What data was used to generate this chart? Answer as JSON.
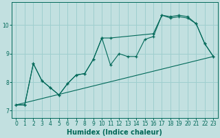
{
  "xlabel": "Humidex (Indice chaleur)",
  "bg_color": "#c2e0e0",
  "grid_color": "#9ecece",
  "line_color": "#006858",
  "xlim": [
    -0.5,
    23.5
  ],
  "ylim": [
    6.75,
    10.8
  ],
  "xticks": [
    0,
    1,
    2,
    3,
    4,
    5,
    6,
    7,
    8,
    9,
    10,
    11,
    12,
    13,
    14,
    15,
    16,
    17,
    18,
    19,
    20,
    21,
    22,
    23
  ],
  "yticks": [
    7,
    8,
    9,
    10
  ],
  "trend_x": [
    0,
    23
  ],
  "trend_y": [
    7.2,
    8.9
  ],
  "line1_x": [
    0,
    1,
    2,
    3,
    4,
    5,
    6,
    7,
    8,
    9,
    10,
    11,
    12,
    13,
    14,
    15,
    16,
    17,
    18,
    19,
    20,
    21,
    22,
    23
  ],
  "line1_y": [
    7.2,
    7.2,
    8.65,
    8.05,
    7.8,
    7.55,
    7.95,
    8.25,
    8.3,
    8.8,
    9.55,
    8.6,
    9.0,
    8.9,
    8.9,
    9.5,
    9.6,
    10.35,
    10.25,
    10.3,
    10.25,
    10.05,
    9.35,
    8.9
  ],
  "line2_x": [
    0,
    1,
    2,
    3,
    4,
    5,
    6,
    7,
    8,
    9,
    10,
    11,
    16,
    17,
    18,
    19,
    20,
    21,
    22,
    23
  ],
  "line2_y": [
    7.2,
    7.2,
    8.65,
    8.05,
    7.8,
    7.55,
    7.95,
    8.25,
    8.3,
    8.8,
    9.55,
    9.55,
    9.7,
    10.35,
    10.3,
    10.35,
    10.3,
    10.05,
    9.35,
    8.9
  ]
}
